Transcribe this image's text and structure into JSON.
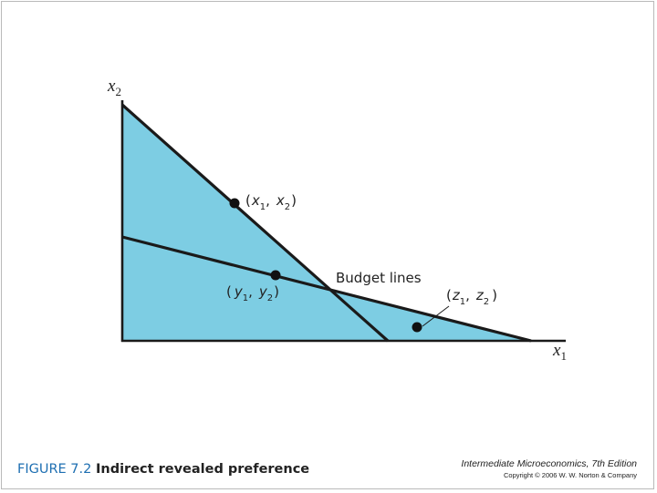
{
  "axes": {
    "y_label": "x",
    "y_sub": "2",
    "x_label": "x",
    "x_sub": "1"
  },
  "points": {
    "x": {
      "open": "(",
      "v1": "x",
      "s1": "1",
      "comma": ",",
      "v2": "x",
      "s2": "2",
      "close": ")"
    },
    "y": {
      "open": "(",
      "v1": "y",
      "s1": "1",
      "comma": ",",
      "v2": "y",
      "s2": "2",
      "close": ")"
    },
    "z": {
      "open": "(",
      "v1": "z",
      "s1": "1",
      "comma": ",",
      "v2": "z",
      "s2": "2",
      "close": ")"
    }
  },
  "labels": {
    "budget_lines": "Budget lines"
  },
  "caption": {
    "figure_number": "FIGURE 7.2",
    "figure_title": "Indirect revealed preference"
  },
  "book": {
    "title": "Intermediate Microeconomics, 7th Edition",
    "copyright": "Copyright © 2006 W. W. Norton & Company"
  },
  "colors": {
    "budget_region": "#7dcde3",
    "lines": "#1a1a1a",
    "caption_number": "#1e6fb2"
  }
}
